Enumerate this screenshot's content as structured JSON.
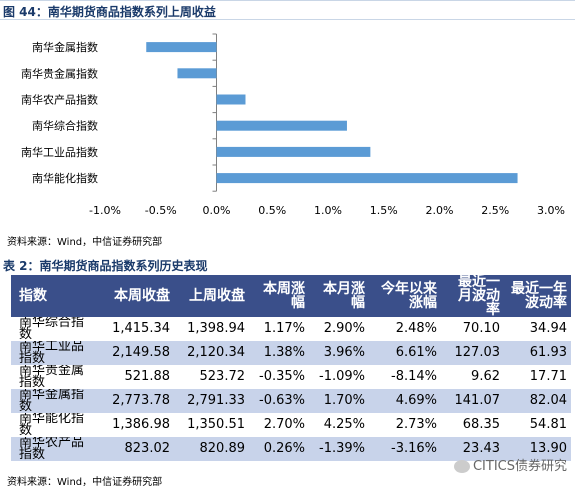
{
  "figure": {
    "title": "图 44：南华期货商品指数系列上周收益",
    "source": "资料来源：Wind，中信证券研究部"
  },
  "chart_data": {
    "type": "bar",
    "orientation": "horizontal",
    "title": "图 44：南华期货商品指数系列上周收益",
    "categories": [
      "南华金属指数",
      "南华贵金属指数",
      "南华农产品指数",
      "南华综合指数",
      "南华工业品指数",
      "南华能化指数"
    ],
    "values": [
      -0.0063,
      -0.0035,
      0.0026,
      0.0117,
      0.0138,
      0.027
    ],
    "xlim": [
      -0.01,
      0.03
    ],
    "xticks": [
      -0.01,
      -0.005,
      0,
      0.005,
      0.01,
      0.015,
      0.02,
      0.025,
      0.03
    ],
    "xtick_labels": [
      "-1.0%",
      "-0.5%",
      "0.0%",
      "0.5%",
      "1.0%",
      "1.5%",
      "2.0%",
      "2.5%",
      "3.0%"
    ],
    "bar_color": "#5b9bd5",
    "grid": false,
    "legend": "none"
  },
  "table": {
    "title": "表 2：南华期货商品指数系列历史表现",
    "headers": [
      "指数",
      "本周收盘",
      "上周收盘",
      "本周涨幅",
      "本月涨幅",
      "今年以来涨幅",
      "最近一月波动率",
      "最近一年波动率"
    ],
    "rows": [
      [
        "南华综合指数",
        "1,415.34",
        "1,398.94",
        "1.17%",
        "2.90%",
        "2.48%",
        "70.10",
        "34.94"
      ],
      [
        "南华工业品指数",
        "2,149.58",
        "2,120.34",
        "1.38%",
        "3.96%",
        "6.61%",
        "127.03",
        "61.93"
      ],
      [
        "南华贵金属指数",
        "521.88",
        "523.72",
        "-0.35%",
        "-1.09%",
        "-8.14%",
        "9.62",
        "17.71"
      ],
      [
        "南华金属指数",
        "2,773.78",
        "2,791.33",
        "-0.63%",
        "1.70%",
        "4.69%",
        "141.07",
        "82.04"
      ],
      [
        "南华能化指数",
        "1,386.98",
        "1,350.51",
        "2.70%",
        "4.25%",
        "2.73%",
        "68.35",
        "54.81"
      ],
      [
        "南华农产品指数",
        "823.02",
        "820.89",
        "0.26%",
        "-1.39%",
        "-3.16%",
        "23.43",
        "13.90"
      ]
    ],
    "source": "资料来源：Wind，中信证券研究部"
  },
  "watermark": {
    "text": "CITICS债券研究"
  }
}
